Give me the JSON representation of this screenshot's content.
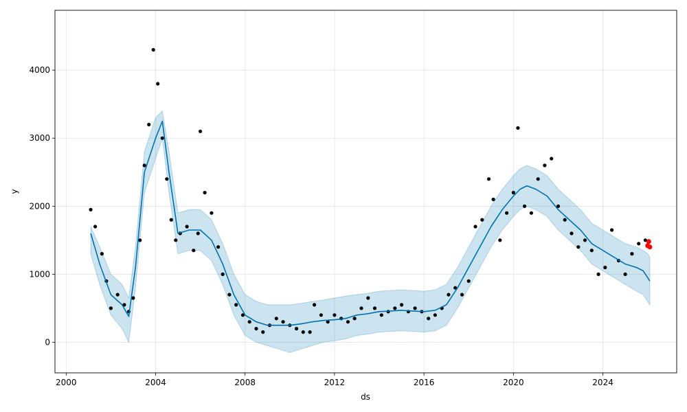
{
  "chart_data": {
    "type": "line",
    "title": "",
    "xlabel": "ds",
    "ylabel": "y",
    "xlim": [
      1999.5,
      2027.3
    ],
    "ylim": [
      -450,
      4880
    ],
    "xticks": [
      2000,
      2004,
      2008,
      2012,
      2016,
      2020,
      2024
    ],
    "yticks": [
      0,
      1000,
      2000,
      3000,
      4000
    ],
    "grid": true,
    "colors": {
      "observed": "#000000",
      "highlight": "#ff0000",
      "forecast": "#0072B2",
      "interval": "#0072B2"
    },
    "forecast": {
      "x": [
        2001.1,
        2001.5,
        2002.0,
        2002.5,
        2002.8,
        2003.1,
        2003.5,
        2004.0,
        2004.3,
        2004.6,
        2005.0,
        2005.5,
        2006.0,
        2006.5,
        2007.0,
        2007.5,
        2008.0,
        2008.5,
        2009.0,
        2009.5,
        2010.0,
        2010.5,
        2011.0,
        2011.5,
        2012.0,
        2012.5,
        2013.0,
        2013.5,
        2014.0,
        2014.5,
        2015.0,
        2015.5,
        2016.0,
        2016.5,
        2017.0,
        2017.5,
        2018.0,
        2018.5,
        2019.0,
        2019.5,
        2020.0,
        2020.3,
        2020.6,
        2021.0,
        2021.5,
        2022.0,
        2022.5,
        2023.0,
        2023.5,
        2024.0,
        2024.5,
        2025.0,
        2025.5,
        2025.8,
        2026.0,
        2026.1
      ],
      "yhat": [
        1600,
        1150,
        700,
        550,
        380,
        1100,
        2500,
        3000,
        3250,
        2500,
        1600,
        1650,
        1650,
        1500,
        1150,
        700,
        400,
        300,
        250,
        250,
        250,
        270,
        300,
        320,
        330,
        350,
        400,
        420,
        450,
        460,
        470,
        460,
        450,
        470,
        550,
        800,
        1100,
        1400,
        1700,
        1950,
        2150,
        2250,
        2300,
        2250,
        2150,
        1950,
        1800,
        1650,
        1450,
        1350,
        1250,
        1150,
        1100,
        1050,
        950,
        900
      ],
      "yhat_upper": [
        1700,
        1400,
        1000,
        850,
        650,
        1400,
        2800,
        3300,
        3400,
        2800,
        1900,
        1950,
        1950,
        1800,
        1450,
        1000,
        700,
        600,
        550,
        550,
        550,
        570,
        600,
        620,
        650,
        680,
        700,
        720,
        750,
        760,
        770,
        760,
        750,
        770,
        850,
        1100,
        1400,
        1700,
        2000,
        2250,
        2450,
        2550,
        2600,
        2550,
        2450,
        2250,
        2100,
        1950,
        1750,
        1650,
        1550,
        1450,
        1400,
        1350,
        1300,
        1250
      ],
      "yhat_lower": [
        1300,
        850,
        400,
        200,
        0,
        800,
        2200,
        2700,
        3000,
        2200,
        1300,
        1350,
        1350,
        1200,
        850,
        400,
        100,
        0,
        -50,
        -100,
        -150,
        -100,
        -50,
        0,
        20,
        50,
        100,
        120,
        150,
        160,
        170,
        160,
        150,
        170,
        250,
        500,
        800,
        1100,
        1400,
        1650,
        1850,
        1950,
        2000,
        1950,
        1850,
        1650,
        1500,
        1350,
        1150,
        1050,
        950,
        850,
        750,
        700,
        600,
        550
      ]
    },
    "observed": {
      "x": [
        2001.1,
        2001.3,
        2001.6,
        2001.8,
        2002.0,
        2002.3,
        2002.6,
        2002.8,
        2003.0,
        2003.3,
        2003.5,
        2003.7,
        2003.9,
        2004.1,
        2004.3,
        2004.5,
        2004.7,
        2004.9,
        2005.1,
        2005.4,
        2005.7,
        2005.9,
        2006.0,
        2006.2,
        2006.5,
        2006.8,
        2007.0,
        2007.3,
        2007.6,
        2007.9,
        2008.2,
        2008.5,
        2008.8,
        2009.1,
        2009.4,
        2009.7,
        2010.0,
        2010.3,
        2010.6,
        2010.9,
        2011.1,
        2011.4,
        2011.7,
        2012.0,
        2012.3,
        2012.6,
        2012.9,
        2013.2,
        2013.5,
        2013.8,
        2014.1,
        2014.4,
        2014.7,
        2015.0,
        2015.3,
        2015.6,
        2015.9,
        2016.2,
        2016.5,
        2016.8,
        2017.1,
        2017.4,
        2017.7,
        2018.0,
        2018.3,
        2018.6,
        2018.9,
        2019.1,
        2019.4,
        2019.7,
        2020.0,
        2020.2,
        2020.5,
        2020.8,
        2021.1,
        2021.4,
        2021.7,
        2022.0,
        2022.3,
        2022.6,
        2022.9,
        2023.2,
        2023.5,
        2023.8,
        2024.1,
        2024.4,
        2024.7,
        2025.0,
        2025.3,
        2025.6,
        2025.9
      ],
      "y": [
        1950,
        1700,
        1300,
        900,
        500,
        700,
        550,
        450,
        650,
        1500,
        2600,
        3200,
        4300,
        3800,
        3000,
        2400,
        1800,
        1500,
        1600,
        1700,
        1350,
        1600,
        3100,
        2200,
        1900,
        1400,
        1000,
        700,
        550,
        400,
        300,
        200,
        150,
        250,
        350,
        300,
        250,
        200,
        150,
        150,
        550,
        400,
        300,
        400,
        350,
        300,
        350,
        500,
        650,
        500,
        400,
        450,
        500,
        550,
        450,
        500,
        450,
        350,
        400,
        500,
        700,
        800,
        700,
        900,
        1700,
        1800,
        2400,
        2100,
        1500,
        1900,
        2200,
        3150,
        2000,
        1900,
        2400,
        2600,
        2700,
        2000,
        1800,
        1600,
        1400,
        1500,
        1350,
        1000,
        1100,
        1650,
        1200,
        1000,
        1300,
        1450,
        1500
      ]
    },
    "highlight": {
      "x": [
        2026.0,
        2026.05,
        2026.1
      ],
      "y": [
        1420,
        1480,
        1400
      ]
    }
  }
}
